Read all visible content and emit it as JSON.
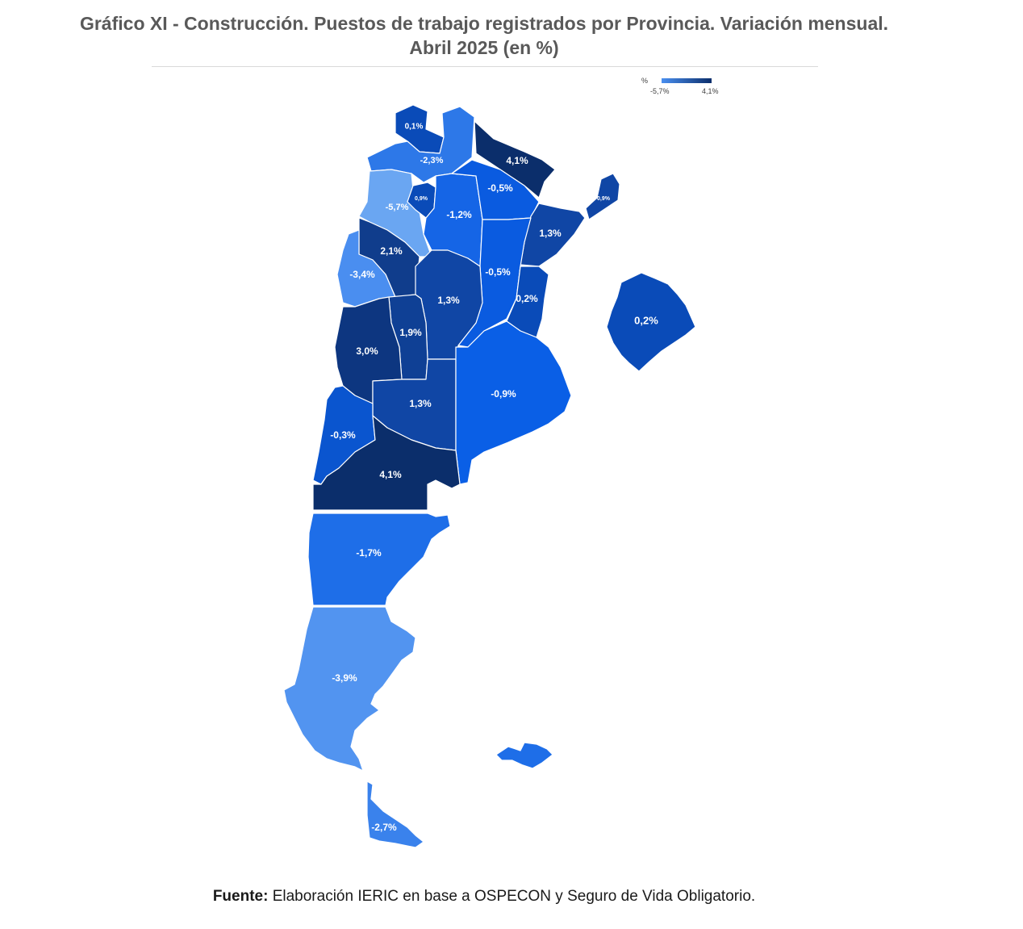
{
  "title_line1": "Gráfico XI - Construcción. Puestos de trabajo registrados por Provincia. Variación mensual.",
  "title_line2": "Abril 2025 (en %)",
  "legend": {
    "unit": "%",
    "min_label": "-5,7%",
    "max_label": "4,1%",
    "min_value": -5.7,
    "max_value": 4.1,
    "color_low": "#4a8ff0",
    "color_high": "#0b2e6b"
  },
  "colors": {
    "c_41": "#0b2e6b",
    "c_30": "#0d3680",
    "c_21": "#103d8c",
    "c_19": "#0f4095",
    "c_13": "#1046a5",
    "c_01": "#0a4bb8",
    "c_m03": "#0a55cf",
    "c_m05": "#0a5be0",
    "c_m09": "#0a5fe6",
    "c_m12": "#1565e6",
    "c_m17": "#1e6ee8",
    "c_m23": "#2d78e8",
    "c_m27": "#3a82ec",
    "c_m34": "#4a8ef0",
    "c_m39": "#5294f0",
    "c_m57": "#6aa6f2",
    "malvinas": "#1e6ee8"
  },
  "regions": {
    "jujuy": "0,1%",
    "salta": "-2,3%",
    "misiones": "4,1%",
    "catamarca": "-5,7%",
    "tucuman": "0,9%",
    "santiago": "-1,2%",
    "chaco": "-0,5%",
    "corrientes_ne": "0,9%",
    "corrientes": "1,3%",
    "la_rioja": "2,1%",
    "santa_fe": "-0,5%",
    "san_juan": "-3,4%",
    "cordoba": "1,3%",
    "entre_rios": "0,2%",
    "san_luis": "1,9%",
    "mendoza": "3,0%",
    "la_pampa": "1,3%",
    "buenos_aires": "-0,9%",
    "caba": "0,2%",
    "neuquen": "-0,3%",
    "rio_negro": "4,1%",
    "chubut": "-1,7%",
    "santa_cruz": "-3,9%",
    "tierra_del_fuego": "-2,7%"
  },
  "source_label": "Fuente:",
  "source_text": " Elaboración IERIC en base a OSPECON y Seguro de Vida Obligatorio."
}
